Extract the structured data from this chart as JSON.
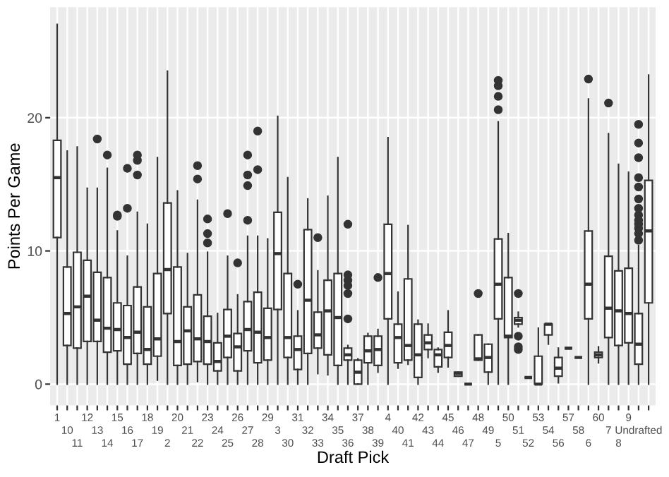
{
  "chart_data": {
    "type": "box",
    "xlabel": "Draft Pick",
    "ylabel": "Points Per Game",
    "categories": [
      "1",
      "10",
      "11",
      "12",
      "13",
      "14",
      "15",
      "16",
      "17",
      "18",
      "19",
      "2",
      "20",
      "21",
      "22",
      "23",
      "24",
      "25",
      "26",
      "27",
      "28",
      "29",
      "3",
      "30",
      "31",
      "32",
      "33",
      "34",
      "35",
      "36",
      "37",
      "38",
      "39",
      "4",
      "40",
      "41",
      "42",
      "43",
      "44",
      "45",
      "46",
      "47",
      "48",
      "49",
      "5",
      "50",
      "51",
      "52",
      "53",
      "54",
      "56",
      "57",
      "58",
      "6",
      "60",
      "7",
      "8",
      "9",
      "Undrafted",
      null
    ],
    "boxes": [
      {
        "low": 0,
        "q1": 11,
        "median": 15.5,
        "q3": 18.3,
        "high": 27
      },
      {
        "low": 0,
        "q1": 2.9,
        "median": 5.3,
        "q3": 8.8,
        "high": 17.5
      },
      {
        "low": 0,
        "q1": 2.7,
        "median": 5.8,
        "q3": 9.9,
        "high": 17.8
      },
      {
        "low": 0,
        "q1": 3.2,
        "median": 6.6,
        "q3": 9.3,
        "high": 14.7
      },
      {
        "low": 0,
        "q1": 3.2,
        "median": 4.8,
        "q3": 8.4,
        "high": 14.7,
        "outliers": [
          18.4
        ]
      },
      {
        "low": 0,
        "q1": 2.4,
        "median": 4.2,
        "q3": 8,
        "high": 16.2,
        "outliers": [
          17.2
        ]
      },
      {
        "low": 0,
        "q1": 2.5,
        "median": 4.1,
        "q3": 6.1,
        "high": 11.5,
        "outliers": [
          12.6,
          12.7
        ]
      },
      {
        "low": 0,
        "q1": 1.5,
        "median": 3.5,
        "q3": 5.9,
        "high": 9.6,
        "outliers": [
          13.2,
          16.2
        ]
      },
      {
        "low": 0,
        "q1": 2.3,
        "median": 3.9,
        "q3": 7.3,
        "high": 12.9,
        "outliers": [
          15.7,
          16.8,
          17.2
        ]
      },
      {
        "low": 0,
        "q1": 1.5,
        "median": 2.6,
        "q3": 5.8,
        "high": 12
      },
      {
        "low": 0.3,
        "q1": 2.1,
        "median": 3.4,
        "q3": 8.3,
        "high": 17
      },
      {
        "low": 0,
        "q1": 5.3,
        "median": 8.6,
        "q3": 13.6,
        "high": 23.5
      },
      {
        "low": 0,
        "q1": 1.4,
        "median": 3.2,
        "q3": 8.8,
        "high": 14.5
      },
      {
        "low": 0,
        "q1": 1.5,
        "median": 4,
        "q3": 5.8,
        "high": 9.8
      },
      {
        "low": 0.2,
        "q1": 1.7,
        "median": 3.4,
        "q3": 6.7,
        "high": 13.8,
        "outliers": [
          15.4,
          16.4
        ]
      },
      {
        "low": 0,
        "q1": 1.5,
        "median": 3.2,
        "q3": 5.1,
        "high": 9.9,
        "outliers": [
          10.6,
          11.3,
          12.4
        ]
      },
      {
        "low": 0,
        "q1": 1,
        "median": 1.7,
        "q3": 3.1,
        "high": 5.3
      },
      {
        "low": 0,
        "q1": 2,
        "median": 3.6,
        "q3": 5.6,
        "high": 9.6,
        "outliers": [
          12.8
        ]
      },
      {
        "low": 0,
        "q1": 1,
        "median": 2.8,
        "q3": 3.8,
        "high": 6.7,
        "outliers": [
          9.1
        ]
      },
      {
        "low": 0,
        "q1": 2.5,
        "median": 4.1,
        "q3": 6.2,
        "high": 11.1,
        "outliers": [
          12.3,
          14.9,
          15.7,
          17.2
        ]
      },
      {
        "low": 0,
        "q1": 1.6,
        "median": 3.9,
        "q3": 6.9,
        "high": 11.1,
        "outliers": [
          16.1,
          19
        ]
      },
      {
        "low": 0,
        "q1": 1.8,
        "median": 3.5,
        "q3": 5.7,
        "high": 10.9
      },
      {
        "low": 0,
        "q1": 5.6,
        "median": 9.8,
        "q3": 12.9,
        "high": 20.1
      },
      {
        "low": 0,
        "q1": 2,
        "median": 3.5,
        "q3": 8.3,
        "high": 15.5
      },
      {
        "low": 0,
        "q1": 1.1,
        "median": 2.6,
        "q3": 3.6,
        "high": 5.5,
        "outliers": [
          7.5
        ]
      },
      {
        "low": 0,
        "q1": 2.3,
        "median": 6.3,
        "q3": 11.6,
        "high": 13.9
      },
      {
        "low": 0.8,
        "q1": 2.7,
        "median": 3.7,
        "q3": 5.4,
        "high": 8.5,
        "outliers": [
          11
        ]
      },
      {
        "low": 0.7,
        "q1": 2.2,
        "median": 5.5,
        "q3": 7.8,
        "high": 14.1
      },
      {
        "low": 0,
        "q1": 1.4,
        "median": 5,
        "q3": 8.3,
        "high": 17
      },
      {
        "low": 0,
        "q1": 1.8,
        "median": 2.2,
        "q3": 2.7,
        "high": 2.9,
        "outliers": [
          4.9,
          6.8,
          7.4,
          7.8,
          8.2,
          12
        ]
      },
      {
        "low": 0,
        "q1": 0,
        "median": 0.9,
        "q3": 1.8,
        "high": 1.9
      },
      {
        "low": 0,
        "q1": 1.6,
        "median": 2.5,
        "q3": 3.6,
        "high": 3.8
      },
      {
        "low": 0.9,
        "q1": 1.4,
        "median": 2.6,
        "q3": 3.6,
        "high": 4.1,
        "outliers": [
          8
        ]
      },
      {
        "low": 0,
        "q1": 4.9,
        "median": 8.3,
        "q3": 12,
        "high": 18.5
      },
      {
        "low": 1.2,
        "q1": 1.6,
        "median": 3.5,
        "q3": 4.5,
        "high": 6.9
      },
      {
        "low": 1.5,
        "q1": 1.8,
        "median": 2.9,
        "q3": 7.9,
        "high": 11.9
      },
      {
        "low": 0,
        "q1": 0.5,
        "median": 2.2,
        "q3": 4.5,
        "high": 4.8
      },
      {
        "low": 2,
        "q1": 2.6,
        "median": 3.1,
        "q3": 3.7,
        "high": 4.5
      },
      {
        "low": 0.9,
        "q1": 1.3,
        "median": 2.2,
        "q3": 2.6,
        "high": 2.7
      },
      {
        "low": 1.3,
        "q1": 2,
        "median": 2.9,
        "q3": 3.9,
        "high": 5.5
      },
      {
        "low": 0.6,
        "q1": 0.6,
        "median": 0.8,
        "q3": 0.9,
        "high": 0.9
      },
      {
        "low": 0,
        "q1": 0,
        "median": 0,
        "q3": 0,
        "high": 0
      },
      {
        "low": 1.8,
        "q1": 1.8,
        "median": 1.9,
        "q3": 3.7,
        "high": 3.7,
        "outliers": [
          6.8
        ]
      },
      {
        "low": 0,
        "q1": 0.9,
        "median": 2,
        "q3": 3,
        "high": 3
      },
      {
        "low": 0,
        "q1": 4.9,
        "median": 7.5,
        "q3": 10.9,
        "high": 19.7,
        "outliers": [
          20.6,
          21.6,
          22.4,
          22.8
        ]
      },
      {
        "low": 0,
        "q1": 3.5,
        "median": 3.6,
        "q3": 8,
        "high": 11.3
      },
      {
        "low": 4.3,
        "q1": 4.5,
        "median": 4.8,
        "q3": 5,
        "high": 5.4,
        "outliers": [
          2.6,
          2.8,
          3.6,
          6.8
        ]
      },
      {
        "low": 0.5,
        "q1": 0.5,
        "median": 0.5,
        "q3": 0.5,
        "high": 0.5
      },
      {
        "low": 0,
        "q1": 0,
        "median": 0,
        "q3": 2.1,
        "high": 4.2
      },
      {
        "low": 3,
        "q1": 3.7,
        "median": 4.5,
        "q3": 4.5,
        "high": 4.5
      },
      {
        "low": 0.1,
        "q1": 0.6,
        "median": 1.2,
        "q3": 2,
        "high": 2.7
      },
      {
        "low": 2.7,
        "q1": 2.7,
        "median": 2.7,
        "q3": 2.7,
        "high": 2.7
      },
      {
        "low": 2,
        "q1": 2,
        "median": 2,
        "q3": 2,
        "high": 2
      },
      {
        "low": 0,
        "q1": 4.9,
        "median": 7.5,
        "q3": 11.5,
        "high": 21.4,
        "outliers": [
          22.9
        ]
      },
      {
        "low": 1.6,
        "q1": 2,
        "median": 2.2,
        "q3": 2.4,
        "high": 2.8
      },
      {
        "low": 0,
        "q1": 3.5,
        "median": 5.7,
        "q3": 9.6,
        "high": 18.8,
        "outliers": [
          21.1
        ]
      },
      {
        "low": 0,
        "q1": 2.9,
        "median": 5.5,
        "q3": 8.5,
        "high": 16.5
      },
      {
        "low": 0,
        "q1": 3.1,
        "median": 5.3,
        "q3": 8.7,
        "high": 15.9
      },
      {
        "low": 0,
        "q1": 1.5,
        "median": 3,
        "q3": 5.3,
        "high": 10.4,
        "outliers": [
          10.8,
          11.3,
          11.7,
          12,
          12.3,
          12.7,
          13.2,
          13.9,
          14.8,
          15.5,
          17,
          18.1,
          19.5
        ]
      },
      {
        "low": 0,
        "q1": 6.1,
        "median": 11.5,
        "q3": 15.3,
        "high": 23.2
      }
    ],
    "ylim": [
      -1.6,
      28.3
    ],
    "yticks": [
      0,
      10,
      20
    ],
    "grid": true
  }
}
